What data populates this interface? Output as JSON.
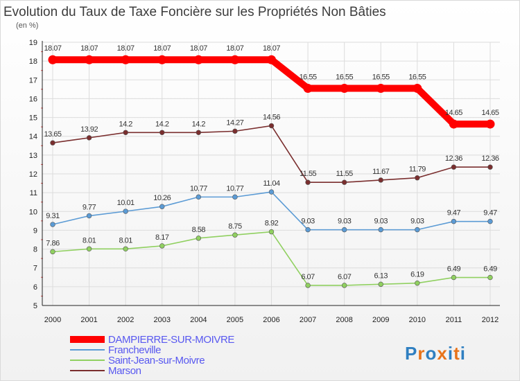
{
  "chart_data": {
    "type": "line",
    "title": "Evolution du Taux de Taxe Foncière sur les Propriétés Non Bâties",
    "subtitle": "(en %)",
    "x": [
      "2000",
      "2001",
      "2002",
      "2003",
      "2004",
      "2005",
      "2006",
      "2007",
      "2008",
      "2009",
      "2010",
      "2011",
      "2012"
    ],
    "ylim": [
      5,
      19
    ],
    "yticks": [
      "5",
      "6",
      "7",
      "8",
      "9",
      "10",
      "11",
      "12",
      "13",
      "14",
      "15",
      "16",
      "17",
      "18",
      "19"
    ],
    "grid": true,
    "legend_position": "bottom-left",
    "series": [
      {
        "name": "DAMPIERRE-SUR-MOIVRE",
        "color": "#ff0000",
        "values": [
          18.07,
          18.07,
          18.07,
          18.07,
          18.07,
          18.07,
          18.07,
          16.55,
          16.55,
          16.55,
          16.55,
          14.65,
          14.65
        ],
        "labels": [
          "18.07",
          "18.07",
          "18.07",
          "18.07",
          "18.07",
          "18.07",
          "18.07",
          "16.55",
          "16.55",
          "16.55",
          "16.55",
          "14.65",
          "14.65"
        ]
      },
      {
        "name": "Francheville",
        "color": "#5b9bd5",
        "values": [
          9.31,
          9.77,
          10.01,
          10.26,
          10.77,
          10.77,
          11.04,
          9.03,
          9.03,
          9.03,
          9.03,
          9.47,
          9.47
        ],
        "labels": [
          "9.31",
          "9.77",
          "10.01",
          "10.26",
          "10.77",
          "10.77",
          "11.04",
          "9.03",
          "9.03",
          "9.03",
          "9.03",
          "9.47",
          "9.47"
        ]
      },
      {
        "name": "Saint-Jean-sur-Moivre",
        "color": "#90d060",
        "values": [
          7.86,
          8.01,
          8.01,
          8.17,
          8.58,
          8.75,
          8.92,
          6.07,
          6.07,
          6.13,
          6.19,
          6.49,
          6.49
        ],
        "labels": [
          "7.86",
          "8.01",
          "8.01",
          "8.17",
          "8.58",
          "8.75",
          "8.92",
          "6.07",
          "6.07",
          "6.13",
          "6.19",
          "6.49",
          "6.49"
        ]
      },
      {
        "name": "Marson",
        "color": "#7a2e2e",
        "values": [
          13.65,
          13.92,
          14.2,
          14.2,
          14.2,
          14.27,
          14.56,
          11.55,
          11.55,
          11.67,
          11.79,
          12.36,
          12.36
        ],
        "labels": [
          "13.65",
          "13.92",
          "14.2",
          "14.2",
          "14.2",
          "14.27",
          "14.56",
          "11.55",
          "11.55",
          "11.67",
          "11.79",
          "12.36",
          "12.36"
        ]
      }
    ]
  },
  "branding": {
    "logo_text": "Proxiti",
    "letter_colors": [
      "#2f7fc1",
      "#e8731a",
      "#2f7fc1",
      "#e8731a",
      "#2f7fc1",
      "#e8731a",
      "#2f7fc1"
    ]
  }
}
